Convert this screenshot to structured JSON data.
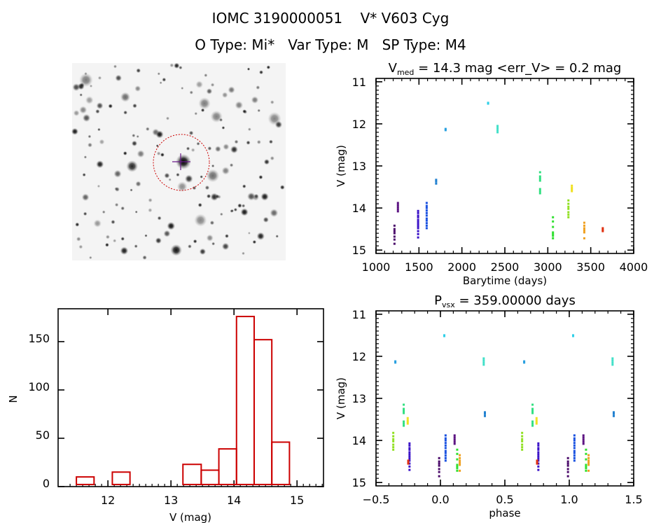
{
  "header": {
    "title": "IOMC 3190000051    V* V603 Cyg",
    "subtitle": "O Type: Mi*   Var Type: M   SP Type: M4"
  },
  "finder_image": {
    "marker_color": "#cc0000",
    "crosshair_color": "#6a1a8a"
  },
  "chart_data": [
    {
      "type": "scatter",
      "title": "V_med = 14.3 mag <err_V> = 0.2 mag",
      "title_parts": {
        "v": "V",
        "sub": "med",
        "rest": " = 14.3 mag <err_V> = 0.2 mag"
      },
      "xlabel": "Barytime (days)",
      "ylabel": "V (mag)",
      "xlim": [
        1000,
        4000
      ],
      "ylim": [
        15.08,
        10.92
      ],
      "xticks": [
        1000,
        1500,
        2000,
        2500,
        3000,
        3500,
        4000
      ],
      "yticks": [
        11,
        12,
        13,
        14,
        15
      ],
      "grid": false,
      "clumps": [
        {
          "t": 1215,
          "phase": -0.01,
          "color": "#4a0a6a",
          "v": [
            14.42,
            14.5,
            14.55,
            14.6,
            14.68,
            14.75,
            14.85
          ]
        },
        {
          "t": 1255,
          "phase": 0.11,
          "color": "#5a1080",
          "v": [
            13.88,
            13.93,
            13.98,
            14.03,
            14.08
          ]
        },
        {
          "t": 1490,
          "phase": -0.24,
          "color": "#3a12c8",
          "v": [
            14.07,
            14.12,
            14.18,
            14.22,
            14.28,
            14.33,
            14.38,
            14.43,
            14.48,
            14.55,
            14.62,
            14.7
          ]
        },
        {
          "t": 1590,
          "phase": 0.04,
          "color": "#1850e0",
          "v": [
            13.88,
            13.95,
            14.0,
            14.06,
            14.12,
            14.18,
            14.25,
            14.3,
            14.36,
            14.42,
            14.48
          ]
        },
        {
          "t": 1700,
          "phase": 0.345,
          "color": "#2080d0",
          "v": [
            13.33,
            13.37,
            13.42
          ]
        },
        {
          "t": 1810,
          "phase": -0.35,
          "color": "#28a0e0",
          "v": [
            12.12,
            12.15
          ]
        },
        {
          "t": 2305,
          "phase": 0.03,
          "color": "#30d0e8",
          "v": [
            11.5,
            11.52
          ]
        },
        {
          "t": 2415,
          "phase": 0.336,
          "color": "#40e0c8",
          "v": [
            12.05,
            12.1,
            12.15,
            12.2
          ]
        },
        {
          "t": 2910,
          "phase": -0.285,
          "color": "#30e080",
          "v": [
            13.15,
            13.25,
            13.3,
            13.35,
            13.55,
            13.6,
            13.65
          ]
        },
        {
          "t": 3060,
          "phase": 0.13,
          "color": "#30e030",
          "v": [
            14.22,
            14.32,
            14.45,
            14.58,
            14.62,
            14.66,
            14.72
          ]
        },
        {
          "t": 3240,
          "phase": -0.366,
          "color": "#90e020",
          "v": [
            13.82,
            13.9,
            13.97,
            14.02,
            14.1,
            14.16,
            14.22
          ]
        },
        {
          "t": 3280,
          "phase": -0.254,
          "color": "#f0e020",
          "v": [
            13.47,
            13.52,
            13.56,
            13.6
          ]
        },
        {
          "t": 3425,
          "phase": 0.15,
          "color": "#f0a020",
          "v": [
            14.35,
            14.42,
            14.48,
            14.53,
            14.58,
            14.72
          ]
        },
        {
          "t": 3640,
          "phase": -0.25,
          "color": "#e03010",
          "v": [
            14.48,
            14.52,
            14.55
          ]
        }
      ]
    },
    {
      "type": "scatter",
      "title": "P_vsx = 359.00000 days",
      "title_parts": {
        "v": "P",
        "sub": "vsx",
        "rest": " = 359.00000 days"
      },
      "xlabel": "phase",
      "ylabel": "V (mag)",
      "xlim": [
        -0.5,
        1.5
      ],
      "ylim": [
        15.08,
        10.92
      ],
      "xticks": [
        -0.5,
        0.0,
        0.5,
        1.0,
        1.5
      ],
      "xtick_labels": [
        "−0.5",
        "0.0",
        "0.5",
        "1.0",
        "1.5"
      ],
      "yticks": [
        11,
        12,
        13,
        14,
        15
      ],
      "period_days": 359.0,
      "grid": false
    },
    {
      "type": "bar",
      "xlabel": "V (mag)",
      "ylabel": "N",
      "xlim": [
        11.21,
        15.42
      ],
      "ylim": [
        0,
        184
      ],
      "xticks": [
        12,
        13,
        14,
        15
      ],
      "yticks": [
        0,
        50,
        100,
        150
      ],
      "bin_edges": [
        11.5,
        11.78,
        12.07,
        12.35,
        12.63,
        12.91,
        13.19,
        13.48,
        13.76,
        14.04,
        14.32,
        14.6,
        14.88
      ],
      "values": [
        10,
        1,
        15,
        0,
        0,
        1,
        23,
        17,
        39,
        176,
        152,
        46
      ],
      "bar_color": "#cc0000",
      "grid": false
    }
  ]
}
